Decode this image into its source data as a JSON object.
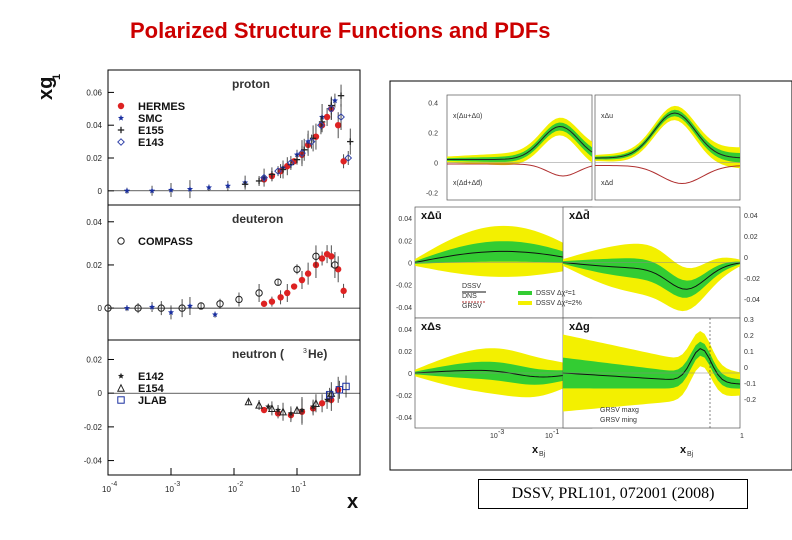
{
  "title": "Polarized Structure Functions and PDFs",
  "reference": "DSSV, PRL101, 072001 (2008)",
  "chart_data": [
    {
      "type": "scatter",
      "ylabel_main": "xg",
      "ylabel_sub": "1",
      "xlabel": "x",
      "x_ticks": [
        "10",
        "10",
        "10",
        "10"
      ],
      "x_tick_exp": [
        "-4",
        "-3",
        "-2",
        "-1"
      ],
      "panels": [
        {
          "name": "proton",
          "yticks": [
            "0",
            "0.02",
            "0.04",
            "0.06"
          ],
          "ylim": [
            -0.005,
            0.07
          ],
          "legend": [
            "HERMES",
            "SMC",
            "E155",
            "E143"
          ],
          "series": [
            {
              "name": "HERMES",
              "x": [
                0.03,
                0.04,
                0.055,
                0.07,
                0.09,
                0.12,
                0.15,
                0.2,
                0.25,
                0.3,
                0.35,
                0.45,
                0.55
              ],
              "y": [
                0.007,
                0.009,
                0.012,
                0.015,
                0.018,
                0.022,
                0.028,
                0.033,
                0.04,
                0.045,
                0.05,
                0.04,
                0.018
              ]
            },
            {
              "name": "SMC",
              "x": [
                0.0002,
                0.0005,
                0.001,
                0.002,
                0.004,
                0.008,
                0.015,
                0.03,
                0.06,
                0.1,
                0.15,
                0.25,
                0.4
              ],
              "y": [
                0.0,
                0.0,
                0.0005,
                0.001,
                0.002,
                0.003,
                0.005,
                0.008,
                0.014,
                0.022,
                0.03,
                0.045,
                0.055
              ]
            },
            {
              "name": "E155",
              "x": [
                0.015,
                0.025,
                0.04,
                0.06,
                0.08,
                0.1,
                0.13,
                0.18,
                0.25,
                0.35,
                0.5,
                0.7
              ],
              "y": [
                0.004,
                0.006,
                0.01,
                0.013,
                0.016,
                0.019,
                0.025,
                0.032,
                0.042,
                0.052,
                0.058,
                0.03
              ]
            },
            {
              "name": "E143",
              "x": [
                0.03,
                0.05,
                0.08,
                0.12,
                0.17,
                0.24,
                0.35,
                0.5,
                0.65
              ],
              "y": [
                0.008,
                0.012,
                0.017,
                0.023,
                0.03,
                0.04,
                0.05,
                0.045,
                0.02
              ]
            }
          ]
        },
        {
          "name": "deuteron",
          "yticks": [
            "0",
            "0.02",
            "0.04"
          ],
          "ylim": [
            -0.012,
            0.045
          ],
          "legend": [
            "COMPASS"
          ],
          "series": [
            {
              "name": "HERMES",
              "x": [
                0.03,
                0.04,
                0.055,
                0.07,
                0.09,
                0.12,
                0.15,
                0.2,
                0.25,
                0.3,
                0.35,
                0.45,
                0.55
              ],
              "y": [
                0.002,
                0.003,
                0.005,
                0.007,
                0.01,
                0.013,
                0.016,
                0.02,
                0.023,
                0.025,
                0.024,
                0.018,
                0.008
              ]
            },
            {
              "name": "COMPASS",
              "x": [
                0.0001,
                0.0003,
                0.0007,
                0.0015,
                0.003,
                0.006,
                0.012,
                0.025,
                0.05,
                0.1,
                0.2,
                0.4
              ],
              "y": [
                0.0,
                0.0,
                0.0,
                0.0,
                0.001,
                0.002,
                0.004,
                0.007,
                0.012,
                0.018,
                0.024,
                0.02
              ]
            },
            {
              "name": "SMC",
              "x": [
                0.0002,
                0.0005,
                0.001,
                0.002,
                0.005
              ],
              "y": [
                0.0,
                0.0005,
                -0.002,
                0.001,
                -0.003
              ]
            }
          ]
        },
        {
          "name": "neutron (",
          "name_sup": "3",
          "name_end": "He)",
          "yticks": [
            "-0.04",
            "-0.02",
            "0",
            "0.02"
          ],
          "ylim": [
            -0.045,
            0.028
          ],
          "legend": [
            "E142",
            "E154",
            "JLAB"
          ],
          "series": [
            {
              "name": "HERMES",
              "x": [
                0.03,
                0.05,
                0.08,
                0.12,
                0.18,
                0.25,
                0.35,
                0.45
              ],
              "y": [
                -0.01,
                -0.012,
                -0.013,
                -0.011,
                -0.009,
                -0.006,
                -0.004,
                0.002
              ]
            },
            {
              "name": "E142",
              "x": [
                0.035,
                0.05,
                0.08,
                0.12,
                0.18,
                0.3
              ],
              "y": [
                -0.008,
                -0.01,
                -0.012,
                -0.01,
                -0.008,
                -0.004
              ]
            },
            {
              "name": "E154",
              "x": [
                0.017,
                0.025,
                0.04,
                0.06,
                0.1,
                0.2,
                0.35
              ],
              "y": [
                -0.005,
                -0.007,
                -0.009,
                -0.011,
                -0.01,
                -0.006,
                0.0
              ]
            },
            {
              "name": "JLAB",
              "x": [
                0.33,
                0.47,
                0.6
              ],
              "y": [
                -0.001,
                0.002,
                0.004
              ]
            }
          ]
        }
      ]
    },
    {
      "type": "line",
      "xlabel": "x",
      "xlabel_sub": "Bj",
      "legend": [
        "DSSV",
        "DNS",
        "GRSV",
        "DSSV Δχ²=1",
        "DSSV Δχ²=2%",
        "GRSV maxg",
        "GRSV ming"
      ],
      "top_panels": [
        {
          "label": "x(Δu+Δū)"
        },
        {
          "label": "xΔu"
        },
        {
          "label": "x(Δd+Δd̄)"
        },
        {
          "label": "xΔd"
        }
      ],
      "top_yticks": [
        "-0.2",
        "0",
        "0.2",
        "0.4"
      ],
      "panels": [
        {
          "name": "xΔū"
        },
        {
          "name": "xΔd̄"
        },
        {
          "name": "xΔs"
        },
        {
          "name": "xΔg"
        }
      ],
      "mid_yticks": [
        "0.04",
        "0.02",
        "0",
        "-0.02",
        "-0.04"
      ],
      "right_yticks": [
        "0.04",
        "0.02",
        "0",
        "-0.02",
        "-0.04",
        "0.3",
        "0.2",
        "0.1",
        "0",
        "-0.1",
        "-0.2"
      ],
      "x_ticks": [
        "10",
        "10",
        "1"
      ],
      "x_tick_exp": [
        "-3",
        "-1",
        ""
      ]
    }
  ]
}
